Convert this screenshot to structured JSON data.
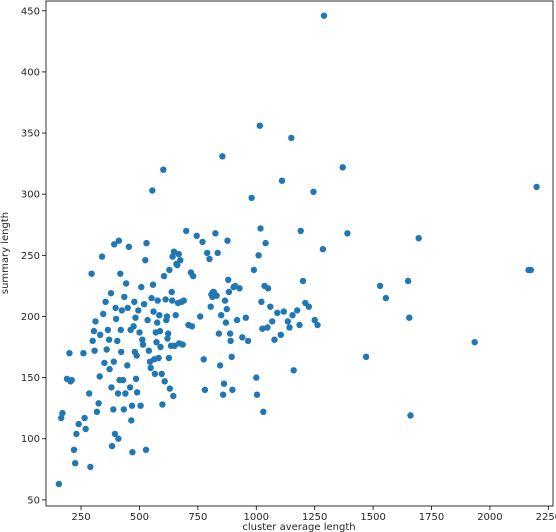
{
  "chart_data": {
    "type": "scatter",
    "title": "",
    "xlabel": "cluster average length",
    "ylabel": "summary length",
    "xlim": [
      100,
      2270
    ],
    "ylim": [
      45,
      458
    ],
    "xticks": [
      250,
      500,
      750,
      1000,
      1250,
      1500,
      1750,
      2000,
      2250
    ],
    "yticks": [
      50,
      100,
      150,
      200,
      250,
      300,
      350,
      400,
      450
    ],
    "grid": false,
    "legend": "none",
    "marker_color": "#1f77b4",
    "points": [
      [
        155,
        63
      ],
      [
        165,
        117
      ],
      [
        170,
        121
      ],
      [
        190,
        149
      ],
      [
        200,
        170
      ],
      [
        205,
        147
      ],
      [
        210,
        148
      ],
      [
        220,
        91
      ],
      [
        225,
        80
      ],
      [
        230,
        104
      ],
      [
        240,
        112
      ],
      [
        260,
        170
      ],
      [
        265,
        117
      ],
      [
        270,
        108
      ],
      [
        285,
        137
      ],
      [
        290,
        77
      ],
      [
        295,
        235
      ],
      [
        300,
        180
      ],
      [
        305,
        188
      ],
      [
        308,
        172
      ],
      [
        312,
        196
      ],
      [
        318,
        122
      ],
      [
        325,
        129
      ],
      [
        330,
        151
      ],
      [
        332,
        185
      ],
      [
        340,
        249
      ],
      [
        345,
        202
      ],
      [
        350,
        162
      ],
      [
        355,
        212
      ],
      [
        360,
        173
      ],
      [
        365,
        189
      ],
      [
        370,
        181
      ],
      [
        372,
        157
      ],
      [
        378,
        219
      ],
      [
        380,
        142
      ],
      [
        383,
        94
      ],
      [
        388,
        124
      ],
      [
        390,
        163
      ],
      [
        392,
        259
      ],
      [
        395,
        104
      ],
      [
        398,
        207
      ],
      [
        400,
        198
      ],
      [
        405,
        180
      ],
      [
        408,
        137
      ],
      [
        410,
        100
      ],
      [
        412,
        262
      ],
      [
        415,
        148
      ],
      [
        418,
        235
      ],
      [
        420,
        189
      ],
      [
        422,
        171
      ],
      [
        425,
        205
      ],
      [
        430,
        148
      ],
      [
        433,
        124
      ],
      [
        435,
        216
      ],
      [
        440,
        137
      ],
      [
        443,
        227
      ],
      [
        448,
        160
      ],
      [
        450,
        207
      ],
      [
        455,
        257
      ],
      [
        460,
        142
      ],
      [
        462,
        189
      ],
      [
        465,
        115
      ],
      [
        468,
        127
      ],
      [
        470,
        89
      ],
      [
        475,
        192
      ],
      [
        478,
        212
      ],
      [
        480,
        171
      ],
      [
        483,
        199
      ],
      [
        485,
        149
      ],
      [
        488,
        168
      ],
      [
        490,
        138
      ],
      [
        495,
        205
      ],
      [
        500,
        187
      ],
      [
        505,
        127
      ],
      [
        508,
        224
      ],
      [
        512,
        181
      ],
      [
        515,
        177
      ],
      [
        520,
        210
      ],
      [
        525,
        246
      ],
      [
        528,
        91
      ],
      [
        530,
        260
      ],
      [
        535,
        197
      ],
      [
        540,
        172
      ],
      [
        545,
        163
      ],
      [
        548,
        158
      ],
      [
        552,
        215
      ],
      [
        555,
        303
      ],
      [
        558,
        226
      ],
      [
        560,
        204
      ],
      [
        563,
        165
      ],
      [
        566,
        153
      ],
      [
        570,
        187
      ],
      [
        573,
        179
      ],
      [
        576,
        195
      ],
      [
        578,
        213
      ],
      [
        582,
        166
      ],
      [
        585,
        201
      ],
      [
        588,
        188
      ],
      [
        590,
        175
      ],
      [
        595,
        153
      ],
      [
        598,
        128
      ],
      [
        602,
        320
      ],
      [
        605,
        233
      ],
      [
        608,
        147
      ],
      [
        612,
        214
      ],
      [
        615,
        197
      ],
      [
        618,
        200
      ],
      [
        620,
        182
      ],
      [
        623,
        186
      ],
      [
        626,
        166
      ],
      [
        628,
        238
      ],
      [
        630,
        141
      ],
      [
        635,
        176
      ],
      [
        638,
        220
      ],
      [
        640,
        213
      ],
      [
        642,
        249
      ],
      [
        645,
        135
      ],
      [
        648,
        253
      ],
      [
        650,
        176
      ],
      [
        655,
        201
      ],
      [
        658,
        243
      ],
      [
        662,
        242
      ],
      [
        665,
        211
      ],
      [
        668,
        251
      ],
      [
        670,
        178
      ],
      [
        675,
        246
      ],
      [
        680,
        212
      ],
      [
        685,
        177
      ],
      [
        690,
        213
      ],
      [
        700,
        270
      ],
      [
        710,
        193
      ],
      [
        720,
        236
      ],
      [
        725,
        192
      ],
      [
        730,
        233
      ],
      [
        745,
        266
      ],
      [
        760,
        200
      ],
      [
        770,
        261
      ],
      [
        775,
        165
      ],
      [
        780,
        140
      ],
      [
        790,
        252
      ],
      [
        800,
        247
      ],
      [
        805,
        208
      ],
      [
        808,
        218
      ],
      [
        812,
        216
      ],
      [
        815,
        220
      ],
      [
        818,
        220
      ],
      [
        825,
        268
      ],
      [
        830,
        217
      ],
      [
        835,
        252
      ],
      [
        840,
        186
      ],
      [
        845,
        160
      ],
      [
        850,
        201
      ],
      [
        855,
        331
      ],
      [
        858,
        136
      ],
      [
        862,
        145
      ],
      [
        866,
        213
      ],
      [
        870,
        195
      ],
      [
        874,
        206
      ],
      [
        877,
        262
      ],
      [
        880,
        230
      ],
      [
        883,
        220
      ],
      [
        888,
        186
      ],
      [
        890,
        180
      ],
      [
        895,
        167
      ],
      [
        898,
        140
      ],
      [
        903,
        224
      ],
      [
        910,
        225
      ],
      [
        918,
        197
      ],
      [
        928,
        223
      ],
      [
        940,
        183
      ],
      [
        955,
        199
      ],
      [
        965,
        180
      ],
      [
        980,
        297
      ],
      [
        990,
        238
      ],
      [
        1000,
        150
      ],
      [
        1003,
        136
      ],
      [
        1010,
        250
      ],
      [
        1015,
        356
      ],
      [
        1018,
        272
      ],
      [
        1022,
        212
      ],
      [
        1026,
        190
      ],
      [
        1030,
        122
      ],
      [
        1035,
        225
      ],
      [
        1040,
        260
      ],
      [
        1048,
        191
      ],
      [
        1050,
        223
      ],
      [
        1060,
        208
      ],
      [
        1068,
        196
      ],
      [
        1078,
        181
      ],
      [
        1090,
        203
      ],
      [
        1105,
        185
      ],
      [
        1110,
        311
      ],
      [
        1118,
        204
      ],
      [
        1135,
        196
      ],
      [
        1142,
        191
      ],
      [
        1150,
        346
      ],
      [
        1155,
        201
      ],
      [
        1160,
        156
      ],
      [
        1175,
        205
      ],
      [
        1185,
        193
      ],
      [
        1190,
        270
      ],
      [
        1200,
        229
      ],
      [
        1210,
        211
      ],
      [
        1225,
        208
      ],
      [
        1245,
        302
      ],
      [
        1250,
        197
      ],
      [
        1262,
        193
      ],
      [
        1285,
        255
      ],
      [
        1290,
        446
      ],
      [
        1370,
        322
      ],
      [
        1390,
        268
      ],
      [
        1470,
        167
      ],
      [
        1530,
        225
      ],
      [
        1555,
        215
      ],
      [
        1650,
        229
      ],
      [
        1655,
        199
      ],
      [
        1660,
        119
      ],
      [
        1695,
        264
      ],
      [
        1935,
        179
      ],
      [
        2165,
        238
      ],
      [
        2175,
        238
      ],
      [
        2200,
        306
      ]
    ]
  }
}
